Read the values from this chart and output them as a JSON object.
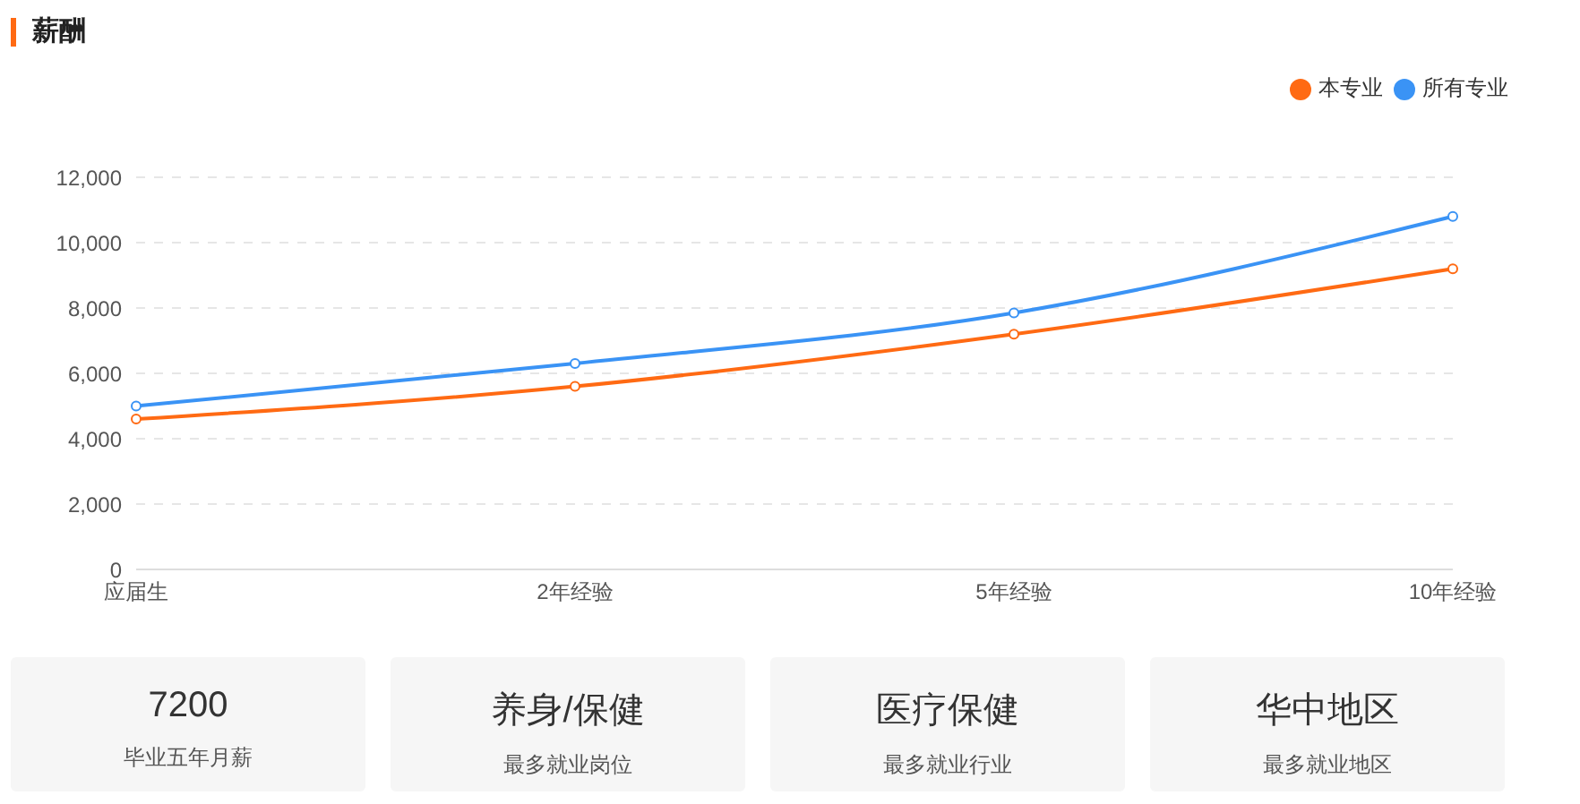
{
  "chart_data": [
    {
      "type": "line",
      "title": "薪酬",
      "categories": [
        "应届生",
        "2年经验",
        "5年经验",
        "10年经验"
      ],
      "series": [
        {
          "name": "本专业",
          "color": "#ff6a13",
          "values": [
            4600,
            5600,
            7200,
            9200
          ]
        },
        {
          "name": "所有专业",
          "color": "#3a93f5",
          "values": [
            5000,
            6300,
            7850,
            10800
          ]
        }
      ],
      "ylim": [
        0,
        12000
      ],
      "yticks": [
        0,
        {
          "value": 2000,
          "label": "2,000"
        },
        {
          "value": 4000,
          "label": "4,000"
        },
        {
          "value": 6000,
          "label": "6,000"
        },
        {
          "value": 8000,
          "label": "8,000"
        },
        {
          "value": 10000,
          "label": "10,000"
        },
        {
          "value": 12000,
          "label": "12,000"
        }
      ],
      "grid": "y",
      "legend": "top right",
      "marker": "circle",
      "line_style": "solid"
    },
    {
      "type": "other",
      "annotations": [
        "7200",
        "毕业五年月薪",
        "养身/保健",
        "最多就业岗位",
        "医疗保健",
        "最多就业行业",
        "华中地区",
        "最多就业地区"
      ]
    }
  ]
}
